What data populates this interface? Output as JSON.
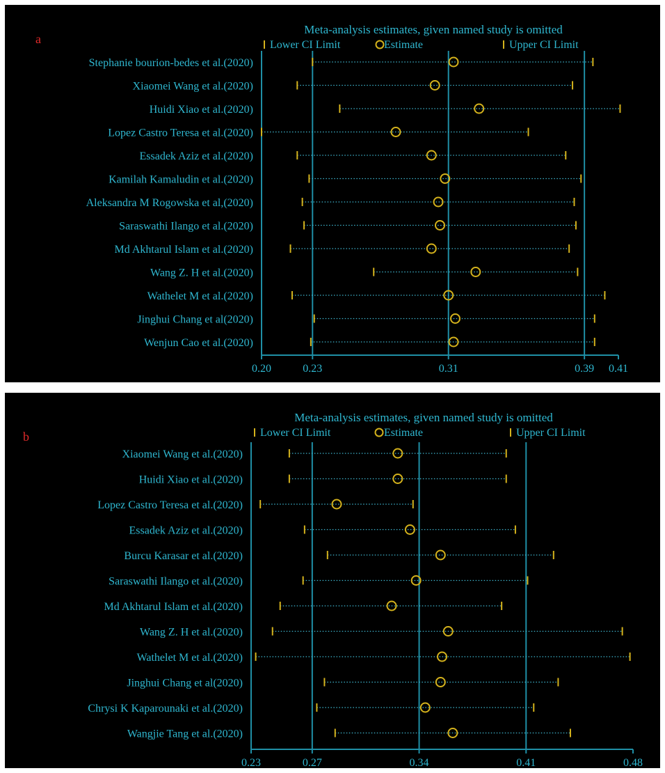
{
  "colors": {
    "background": "#000000",
    "text": "#2fb7d0",
    "axis": "#1f8fa6",
    "marker": "#d4b21c",
    "dotted": "#3fb6cf",
    "panel_label": "#e02a2a"
  },
  "chart_data": [
    {
      "type": "scatter",
      "panel_label": "a",
      "title": "Meta-analysis estimates, given named study is omitted",
      "legend": {
        "position": "top",
        "items": [
          "Lower CI Limit",
          "Estimate",
          "Upper CI Limit"
        ]
      },
      "xlim": [
        0.2,
        0.41
      ],
      "xticks": [
        0.2,
        0.23,
        0.31,
        0.39,
        0.41
      ],
      "xtick_labels": [
        "0.20",
        "0.23",
        "0.31",
        "0.39",
        "0.41"
      ],
      "reference_lines": [
        0.23,
        0.31,
        0.39
      ],
      "studies": [
        {
          "label": "Stephanie bourion-bedes et al.(2020)",
          "lower": 0.23,
          "estimate": 0.313,
          "upper": 0.395
        },
        {
          "label": "Xiaomei Wang et al.(2020)",
          "lower": 0.221,
          "estimate": 0.302,
          "upper": 0.383
        },
        {
          "label": "Huidi Xiao et al.(2020)",
          "lower": 0.246,
          "estimate": 0.328,
          "upper": 0.411
        },
        {
          "label": "Lopez Castro Teresa et al.(2020)",
          "lower": 0.2,
          "estimate": 0.279,
          "upper": 0.357
        },
        {
          "label": "Essadek Aziz et al.(2020)",
          "lower": 0.221,
          "estimate": 0.3,
          "upper": 0.379
        },
        {
          "label": "Kamilah Kamaludin et al.(2020)",
          "lower": 0.228,
          "estimate": 0.308,
          "upper": 0.388
        },
        {
          "label": "Aleksandra M Rogowska et al,(2020)",
          "lower": 0.224,
          "estimate": 0.304,
          "upper": 0.384
        },
        {
          "label": "Saraswathi Ilango et al.(2020)",
          "lower": 0.225,
          "estimate": 0.305,
          "upper": 0.385
        },
        {
          "label": "Md Akhtarul Islam et al.(2020)",
          "lower": 0.217,
          "estimate": 0.3,
          "upper": 0.381
        },
        {
          "label": "Wang Z. H et al.(2020)",
          "lower": 0.266,
          "estimate": 0.326,
          "upper": 0.386
        },
        {
          "label": "Wathelet M et al.(2020)",
          "lower": 0.218,
          "estimate": 0.31,
          "upper": 0.402
        },
        {
          "label": "Jinghui Chang et al(2020)",
          "lower": 0.231,
          "estimate": 0.314,
          "upper": 0.396
        },
        {
          "label": "Wenjun Cao et al.(2020)",
          "lower": 0.229,
          "estimate": 0.313,
          "upper": 0.396
        }
      ]
    },
    {
      "type": "scatter",
      "panel_label": "b",
      "title": "Meta-analysis estimates, given named study is omitted",
      "legend": {
        "position": "top",
        "items": [
          "Lower CI Limit",
          "Estimate",
          "Upper CI Limit"
        ]
      },
      "xlim": [
        0.23,
        0.48
      ],
      "xticks": [
        0.23,
        0.27,
        0.34,
        0.41,
        0.48
      ],
      "xtick_labels": [
        "0.23",
        "0.27",
        "0.34",
        "0.41",
        "0.48"
      ],
      "reference_lines": [
        0.27,
        0.34,
        0.41
      ],
      "studies": [
        {
          "label": "Xiaomei Wang et al.(2020)",
          "lower": 0.255,
          "estimate": 0.326,
          "upper": 0.397
        },
        {
          "label": "Huidi Xiao et al.(2020)",
          "lower": 0.255,
          "estimate": 0.326,
          "upper": 0.397
        },
        {
          "label": "Lopez Castro Teresa et al.(2020)",
          "lower": 0.236,
          "estimate": 0.286,
          "upper": 0.336
        },
        {
          "label": "Essadek Aziz et al.(2020)",
          "lower": 0.265,
          "estimate": 0.334,
          "upper": 0.403
        },
        {
          "label": "Burcu Karasar et al.(2020)",
          "lower": 0.28,
          "estimate": 0.354,
          "upper": 0.428
        },
        {
          "label": "Saraswathi Ilango et al.(2020)",
          "lower": 0.264,
          "estimate": 0.338,
          "upper": 0.411
        },
        {
          "label": "Md Akhtarul Islam et al.(2020)",
          "lower": 0.249,
          "estimate": 0.322,
          "upper": 0.394
        },
        {
          "label": "Wang Z. H et al.(2020)",
          "lower": 0.244,
          "estimate": 0.359,
          "upper": 0.473
        },
        {
          "label": "Wathelet M et al.(2020)",
          "lower": 0.233,
          "estimate": 0.355,
          "upper": 0.478
        },
        {
          "label": "Jinghui Chang et al(2020)",
          "lower": 0.278,
          "estimate": 0.354,
          "upper": 0.431
        },
        {
          "label": "Chrysi K Kaparounaki et al.(2020)",
          "lower": 0.273,
          "estimate": 0.344,
          "upper": 0.415
        },
        {
          "label": "Wangjie Tang et al.(2020)",
          "lower": 0.285,
          "estimate": 0.362,
          "upper": 0.439
        }
      ]
    }
  ]
}
